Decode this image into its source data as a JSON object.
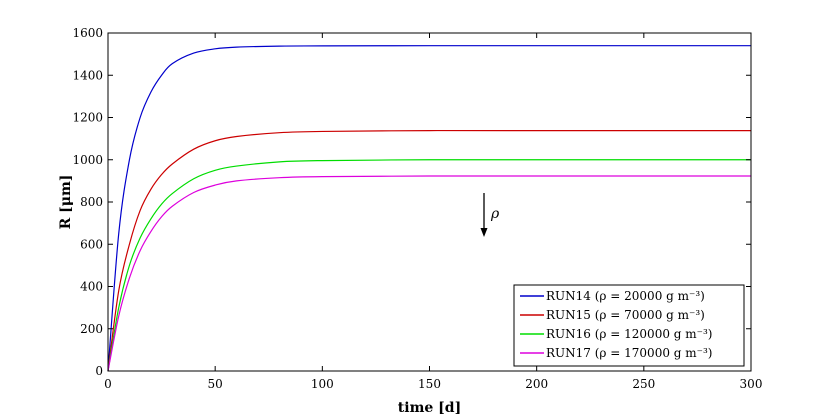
{
  "chart_data": {
    "type": "line",
    "title": "",
    "xlabel": "time [d]",
    "ylabel": "R [μm]",
    "xlim": [
      0,
      300
    ],
    "ylim": [
      0,
      1600
    ],
    "xticks": [
      "0",
      "50",
      "100",
      "150",
      "200",
      "250",
      "300"
    ],
    "yticks": [
      "0",
      "200",
      "400",
      "600",
      "800",
      "1000",
      "1200",
      "1400",
      "1600"
    ],
    "grid": false,
    "legend_position": "bottom-right",
    "annotation": {
      "text": "ρ",
      "arrow": "down",
      "x": 175,
      "y_from": 850,
      "y_to": 640
    },
    "series": [
      {
        "name": "RUN14 (ρ = 20000 g m⁻³)",
        "color": "#0000cc",
        "x": [
          0,
          5,
          10,
          15,
          20,
          25,
          30,
          40,
          50,
          60,
          80,
          100,
          150,
          200,
          250,
          300
        ],
        "values": [
          0,
          650,
          1000,
          1200,
          1320,
          1400,
          1455,
          1505,
          1525,
          1533,
          1538,
          1539,
          1540,
          1540,
          1540,
          1540
        ]
      },
      {
        "name": "RUN15 (ρ = 70000 g m⁻³)",
        "color": "#cc0000",
        "x": [
          0,
          5,
          10,
          15,
          20,
          25,
          30,
          40,
          50,
          60,
          80,
          100,
          150,
          200,
          250,
          300
        ],
        "values": [
          0,
          380,
          600,
          760,
          860,
          930,
          980,
          1050,
          1090,
          1110,
          1128,
          1134,
          1138,
          1138,
          1138,
          1138
        ]
      },
      {
        "name": "RUN16 (ρ = 120000 g m⁻³)",
        "color": "#00dd00",
        "x": [
          0,
          5,
          10,
          15,
          20,
          25,
          30,
          40,
          50,
          60,
          80,
          100,
          150,
          200,
          250,
          300
        ],
        "values": [
          0,
          300,
          500,
          630,
          720,
          790,
          840,
          910,
          950,
          970,
          990,
          996,
          1000,
          1000,
          1000,
          1000
        ]
      },
      {
        "name": "RUN17 (ρ = 170000 g m⁻³)",
        "color": "#dd00dd",
        "x": [
          0,
          5,
          10,
          15,
          20,
          25,
          30,
          40,
          50,
          60,
          80,
          100,
          150,
          200,
          250,
          300
        ],
        "values": [
          0,
          260,
          440,
          570,
          660,
          730,
          780,
          845,
          880,
          900,
          915,
          920,
          923,
          923,
          923,
          923
        ]
      }
    ]
  }
}
